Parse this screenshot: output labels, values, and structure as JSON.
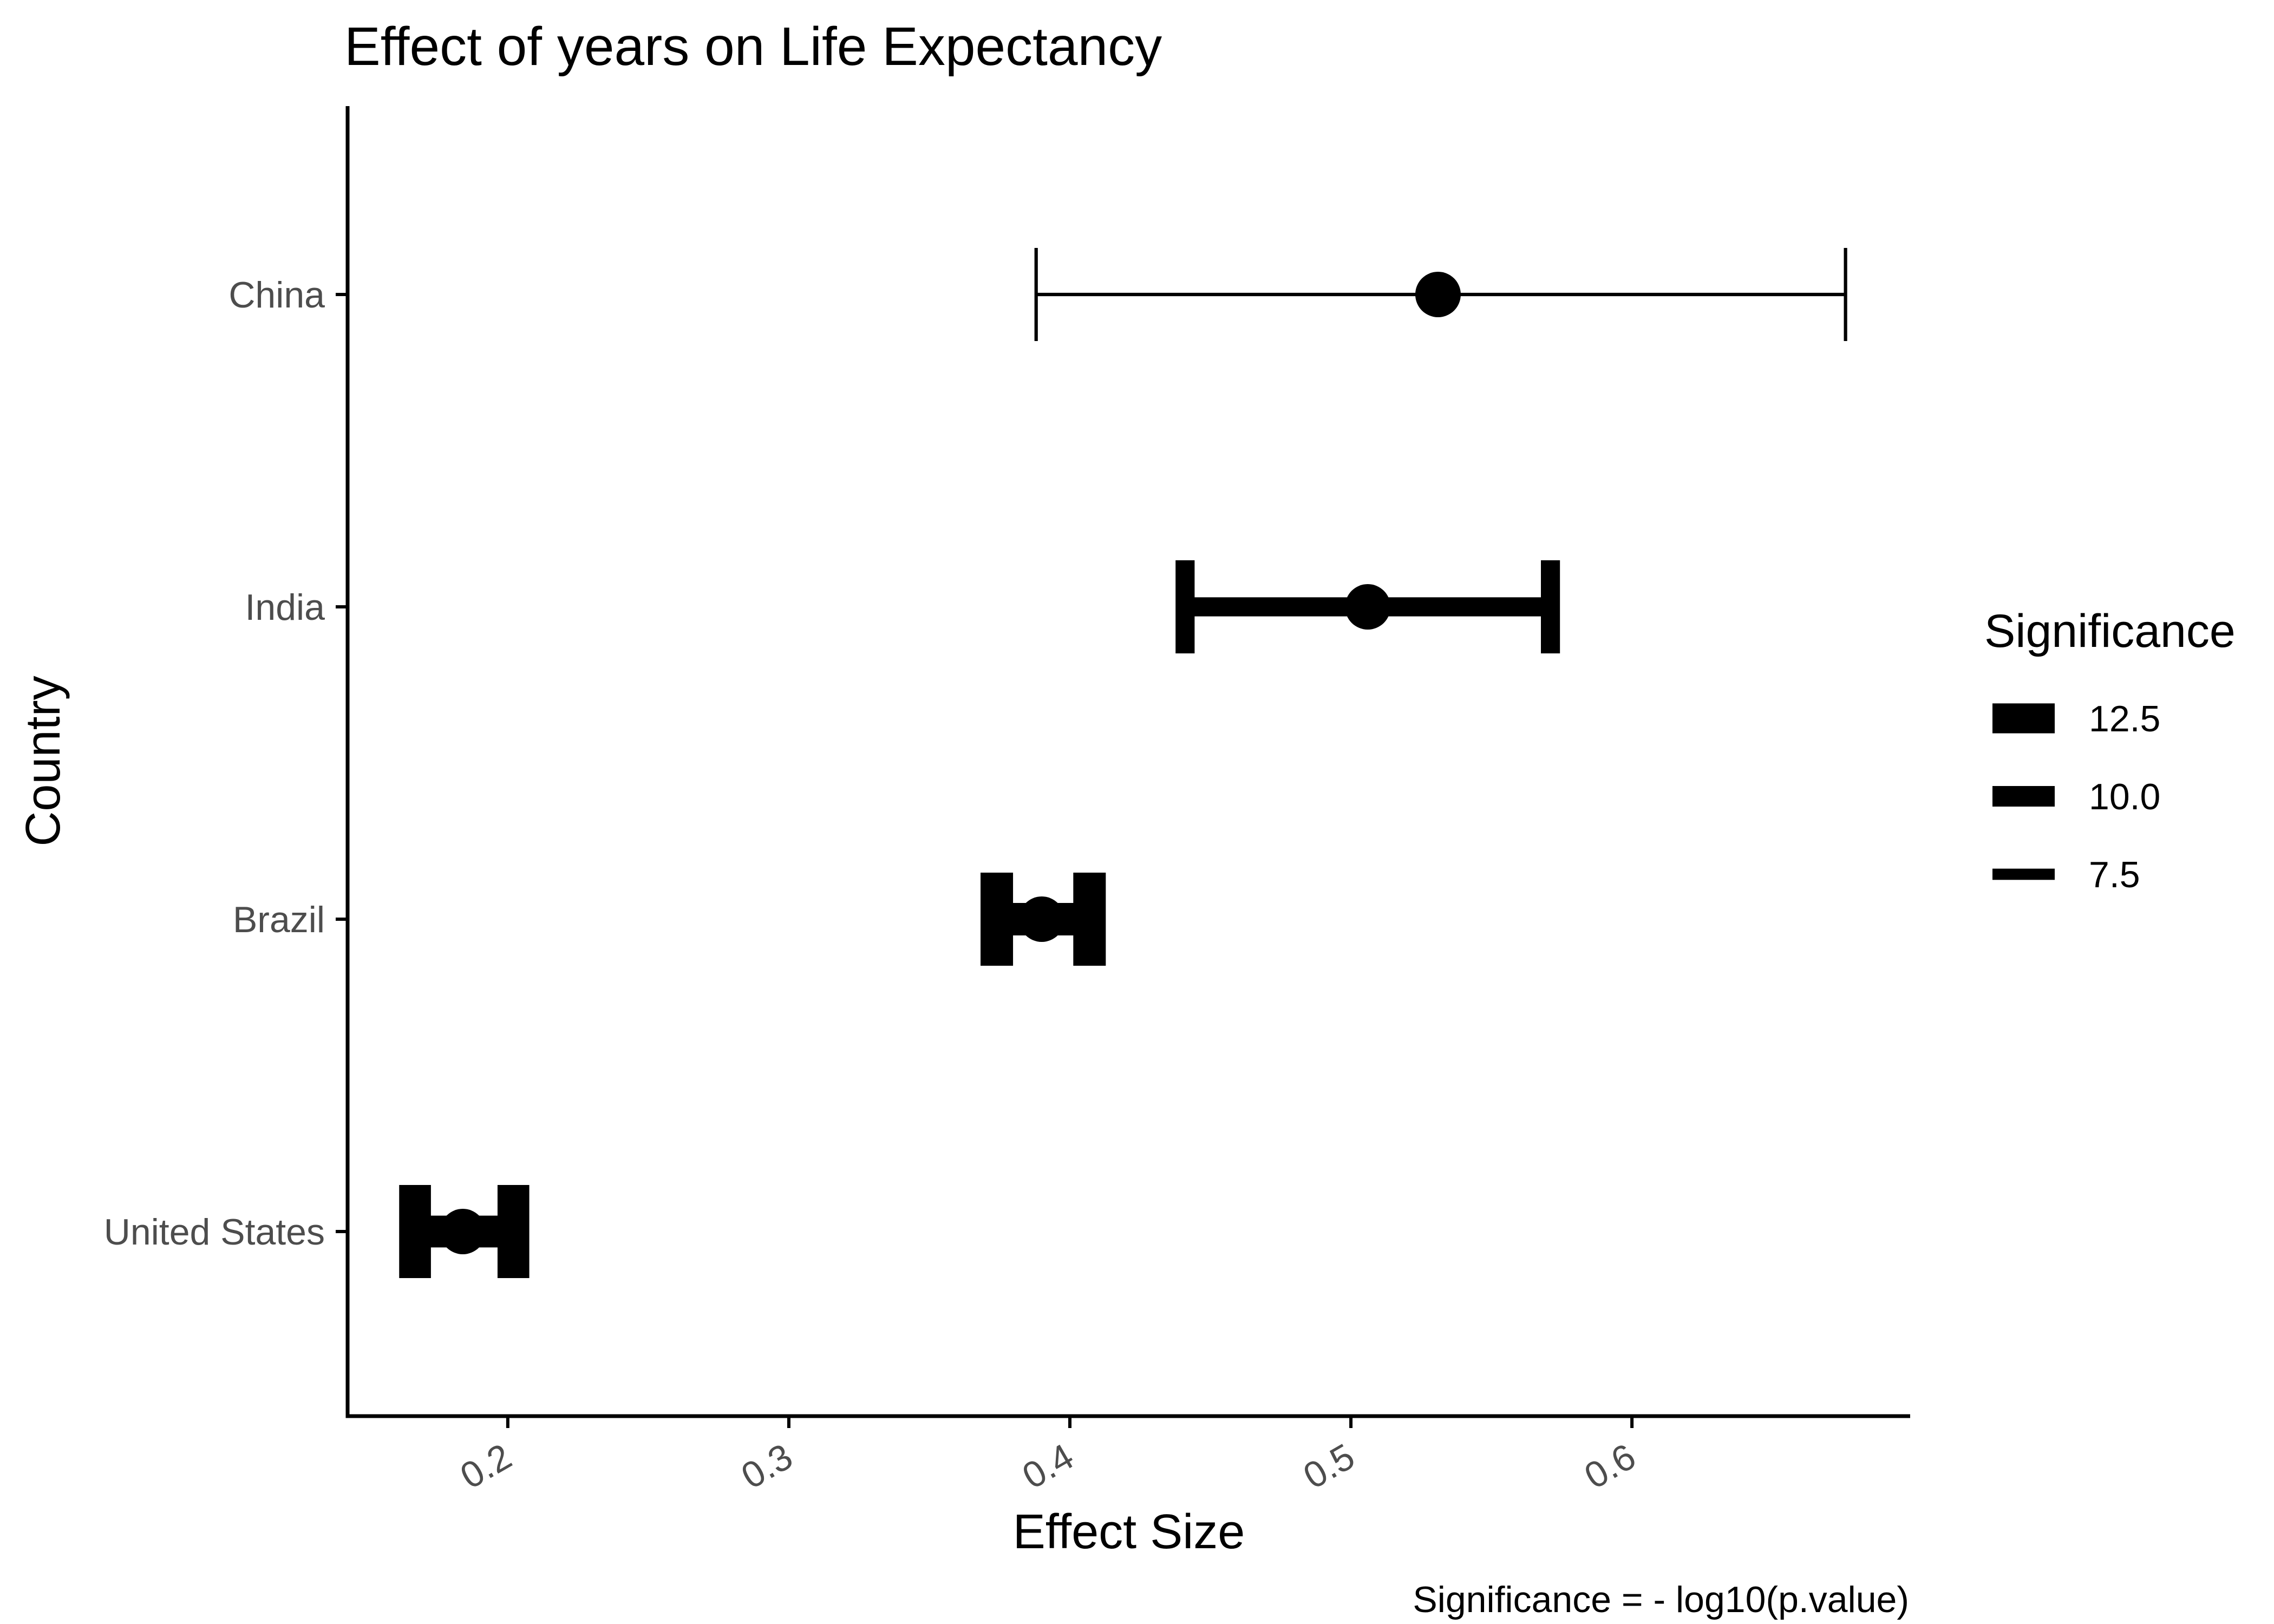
{
  "chart_data": {
    "type": "errorbar",
    "title": "Effect of years on Life Expectancy",
    "xlabel": "Effect Size",
    "ylabel": "Country",
    "caption": "Significance = - log10(p.value)",
    "categories": [
      "United States",
      "Brazil",
      "India",
      "China"
    ],
    "points": [
      {
        "country": "United States",
        "estimate": 0.184,
        "low": 0.167,
        "high": 0.202,
        "significance": 13.0
      },
      {
        "country": "Brazil",
        "estimate": 0.39,
        "low": 0.374,
        "high": 0.407,
        "significance": 13.2
      },
      {
        "country": "India",
        "estimate": 0.506,
        "low": 0.441,
        "high": 0.571,
        "significance": 9.6
      },
      {
        "country": "China",
        "estimate": 0.531,
        "low": 0.388,
        "high": 0.676,
        "significance": 5.4
      }
    ],
    "xticks": [
      0.2,
      0.3,
      0.4,
      0.5,
      0.6
    ],
    "xtick_labels": [
      "0.2",
      "0.3",
      "0.4",
      "0.5",
      "0.6"
    ],
    "xlim": [
      0.143,
      0.699
    ],
    "grid": false,
    "legend": {
      "title": "Significance",
      "placement": "right",
      "entries": [
        {
          "label": "12.5",
          "value": 12.5
        },
        {
          "label": "10.0",
          "value": 10.0
        },
        {
          "label": "7.5",
          "value": 7.5
        }
      ]
    },
    "colors": {
      "marks": "#000000",
      "tick_labels": "#4d4d4d",
      "axis": "#000000"
    }
  }
}
